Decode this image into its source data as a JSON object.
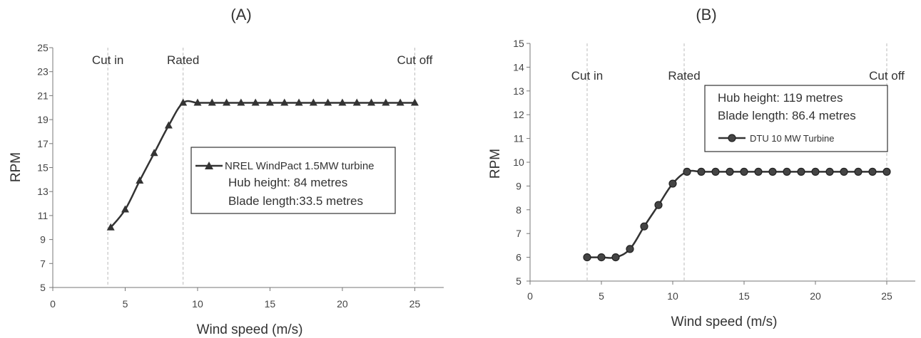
{
  "chart_data": [
    {
      "type": "line",
      "panel_label": "(A)",
      "xlabel": "Wind speed (m/s)",
      "ylabel": "RPM",
      "xlim": [
        0,
        27
      ],
      "ylim": [
        5,
        25
      ],
      "xticks": [
        0,
        5,
        10,
        15,
        20,
        25
      ],
      "yticks": [
        5,
        7,
        9,
        11,
        13,
        15,
        17,
        19,
        21,
        23,
        25
      ],
      "grid": false,
      "marker": "triangle",
      "series": [
        {
          "name": "NREL WindPact 1.5MW turbine",
          "x": [
            4,
            5,
            6,
            7,
            8,
            9,
            10,
            11,
            12,
            13,
            14,
            15,
            16,
            17,
            18,
            19,
            20,
            21,
            22,
            23,
            24,
            25
          ],
          "y": [
            10.0,
            11.5,
            13.9,
            16.2,
            18.5,
            20.4,
            20.4,
            20.4,
            20.4,
            20.4,
            20.4,
            20.4,
            20.4,
            20.4,
            20.4,
            20.4,
            20.4,
            20.4,
            20.4,
            20.4,
            20.4,
            20.4
          ]
        }
      ],
      "vlines": [
        {
          "x": 3.8,
          "label": "Cut in"
        },
        {
          "x": 9,
          "label": "Rated"
        },
        {
          "x": 25,
          "label": "Cut off"
        }
      ],
      "legend_position": "center-right",
      "legend_notes": [
        "Hub height: 84 metres",
        "Blade length:33.5 metres"
      ]
    },
    {
      "type": "line",
      "panel_label": "(B)",
      "xlabel": "Wind speed (m/s)",
      "ylabel": "RPM",
      "xlim": [
        0,
        27
      ],
      "ylim": [
        5,
        15
      ],
      "xticks": [
        0,
        5,
        10,
        15,
        20,
        25
      ],
      "yticks": [
        5,
        6,
        7,
        8,
        9,
        10,
        11,
        12,
        13,
        14,
        15
      ],
      "grid": false,
      "marker": "circle",
      "series": [
        {
          "name": "DTU 10 MW Turbine",
          "x": [
            4,
            5,
            6,
            7,
            8,
            9,
            10,
            11,
            12,
            13,
            14,
            15,
            16,
            17,
            18,
            19,
            20,
            21,
            22,
            23,
            24,
            25
          ],
          "y": [
            6.0,
            6.0,
            6.0,
            6.35,
            7.3,
            8.2,
            9.1,
            9.6,
            9.6,
            9.6,
            9.6,
            9.6,
            9.6,
            9.6,
            9.6,
            9.6,
            9.6,
            9.6,
            9.6,
            9.6,
            9.6,
            9.6
          ]
        }
      ],
      "vlines": [
        {
          "x": 4,
          "label": "Cut in"
        },
        {
          "x": 10.8,
          "label": "Rated"
        },
        {
          "x": 25,
          "label": "Cut off"
        }
      ],
      "legend_position": "top-right",
      "legend_notes": [
        "Hub height: 119 metres",
        "Blade length: 86.4 metres"
      ]
    }
  ]
}
